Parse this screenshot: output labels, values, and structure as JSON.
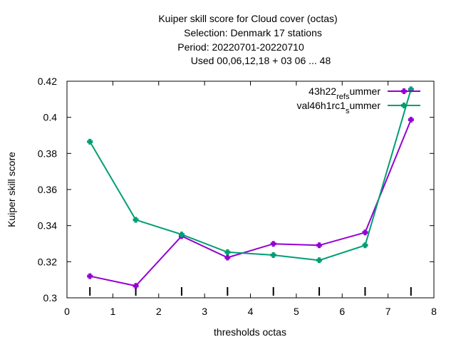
{
  "chart_data": {
    "type": "line",
    "title_lines": [
      "Kuiper skill score  for Cloud cover (octas)",
      "Selection: Denmark     17 stations",
      "Period: 20220701-20220710",
      "Used  00,06,12,18  + 03 06 ... 48"
    ],
    "xlabel": "thresholds octas",
    "ylabel": "Kuiper skill score",
    "xlim": [
      0,
      8
    ],
    "ylim": [
      0.3,
      0.42
    ],
    "xticks": [
      0,
      1,
      2,
      3,
      4,
      5,
      6,
      7,
      8
    ],
    "xtick_labels": [
      "0",
      "1",
      "2",
      "3",
      "4",
      "5",
      "6",
      "7",
      "8"
    ],
    "yticks": [
      0.3,
      0.32,
      0.34,
      0.36,
      0.38,
      0.4,
      0.42
    ],
    "ytick_labels": [
      "0.3",
      "0.32",
      "0.34",
      "0.36",
      "0.38",
      "0.4",
      "0.42"
    ],
    "grid": false,
    "legend_position": "top-right",
    "x": [
      0.5,
      1.5,
      2.5,
      3.5,
      4.5,
      5.5,
      6.5,
      7.5
    ],
    "series": [
      {
        "name_parts": [
          "43h22",
          "_",
          "ref",
          "_",
          "s",
          "ummer"
        ],
        "color": "#9400d3",
        "values": [
          0.312,
          0.3066,
          0.3342,
          0.3223,
          0.3299,
          0.3291,
          0.3362,
          0.3987
        ]
      },
      {
        "name_parts": [
          "val46h1rc1",
          "_",
          "s",
          "ummer"
        ],
        "color": "#009e73",
        "values": [
          0.3865,
          0.3432,
          0.3351,
          0.3253,
          0.3237,
          0.3208,
          0.3291,
          0.4155
        ]
      }
    ]
  }
}
